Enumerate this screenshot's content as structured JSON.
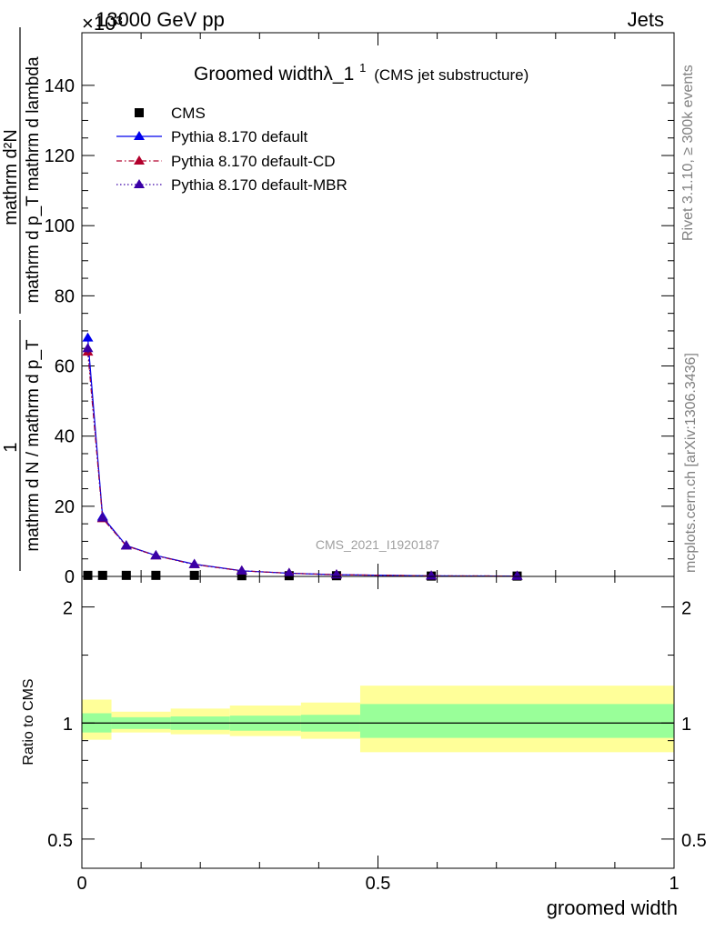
{
  "header": {
    "energy_label": "13000 GeV pp",
    "process_label": "Jets",
    "exponent_label": "×10³",
    "rivet_label": "Rivet 3.1.10, ≥ 300k events",
    "mcplots_label": "mcplots.cern.ch [arXiv:1306.3436]",
    "analysis_id": "CMS_2021_I1920187"
  },
  "chart_data": [
    {
      "type": "line",
      "title_main": "Groomed widthλ_1",
      "title_sup": "1",
      "title_suffix": "(CMS jet substructure)",
      "ylabel": "1 / (mathrm d N / mathrm d p_T) · mathrm d²N / (mathrm d p_T mathrm d lambda)",
      "ylabel_top_num": "1",
      "ylabel_top_den": "mathrm d N / mathrm d p_T",
      "ylabel_right_num": "mathrm d²N",
      "ylabel_right_den": "mathrm d p_T mathrm d lambda",
      "xlim": [
        0,
        1
      ],
      "ylim": [
        0,
        155
      ],
      "y_ticks": [
        0,
        20,
        40,
        60,
        80,
        100,
        120,
        140
      ],
      "y_tick_labels": [
        "0",
        "20",
        "40",
        "60",
        "80",
        "100",
        "120",
        "140"
      ],
      "x": [
        0.01,
        0.035,
        0.075,
        0.125,
        0.19,
        0.27,
        0.35,
        0.43,
        0.59,
        0.735
      ],
      "series": [
        {
          "name": "CMS",
          "style": "square",
          "color": "#000000",
          "values": [
            0.3,
            0.3,
            0.3,
            0.3,
            0.3,
            0.2,
            0.2,
            0.2,
            0.1,
            0.1
          ]
        },
        {
          "name": "Pythia 8.170 default",
          "style": "solid",
          "color": "#0000ee",
          "values": [
            68,
            17,
            8.8,
            6.0,
            3.5,
            1.6,
            0.9,
            0.5,
            0.15,
            0.1
          ]
        },
        {
          "name": "Pythia 8.170 default-CD",
          "style": "dashdot",
          "color": "#b2002c",
          "values": [
            64,
            16.5,
            8.7,
            5.9,
            3.4,
            1.6,
            0.9,
            0.5,
            0.15,
            0.1
          ]
        },
        {
          "name": "Pythia 8.170 default-MBR",
          "style": "dotted",
          "color": "#3a00a6",
          "values": [
            65,
            16.7,
            8.7,
            5.9,
            3.4,
            1.6,
            0.9,
            0.5,
            0.15,
            0.1
          ]
        }
      ]
    },
    {
      "type": "area",
      "ylabel": "Ratio to CMS",
      "xlabel": "groomed width",
      "xlim": [
        0,
        1
      ],
      "ylim": [
        0.42,
        2.4
      ],
      "scale": "log",
      "y_ticks": [
        0.5,
        1,
        2
      ],
      "y_tick_labels": [
        "0.5",
        "1",
        "2"
      ],
      "x_ticks": [
        0,
        0.5,
        1
      ],
      "x_tick_labels": [
        "0",
        "0.5",
        "1"
      ],
      "bins": [
        {
          "x0": 0.0,
          "x1": 0.05,
          "stat_lo": 0.945,
          "stat_hi": 1.06,
          "tot_lo": 0.905,
          "tot_hi": 1.15
        },
        {
          "x0": 0.05,
          "x1": 0.15,
          "stat_lo": 0.965,
          "stat_hi": 1.035,
          "tot_lo": 0.945,
          "tot_hi": 1.07
        },
        {
          "x0": 0.15,
          "x1": 0.25,
          "stat_lo": 0.96,
          "stat_hi": 1.04,
          "tot_lo": 0.935,
          "tot_hi": 1.09
        },
        {
          "x0": 0.25,
          "x1": 0.37,
          "stat_lo": 0.955,
          "stat_hi": 1.045,
          "tot_lo": 0.925,
          "tot_hi": 1.11
        },
        {
          "x0": 0.37,
          "x1": 0.47,
          "stat_lo": 0.95,
          "stat_hi": 1.05,
          "tot_lo": 0.91,
          "tot_hi": 1.13
        },
        {
          "x0": 0.47,
          "x1": 1.0,
          "stat_lo": 0.915,
          "stat_hi": 1.12,
          "tot_lo": 0.84,
          "tot_hi": 1.25
        }
      ],
      "reference": 1,
      "band_colors": {
        "stat": "#99ff99",
        "total": "#ffff99"
      }
    }
  ]
}
